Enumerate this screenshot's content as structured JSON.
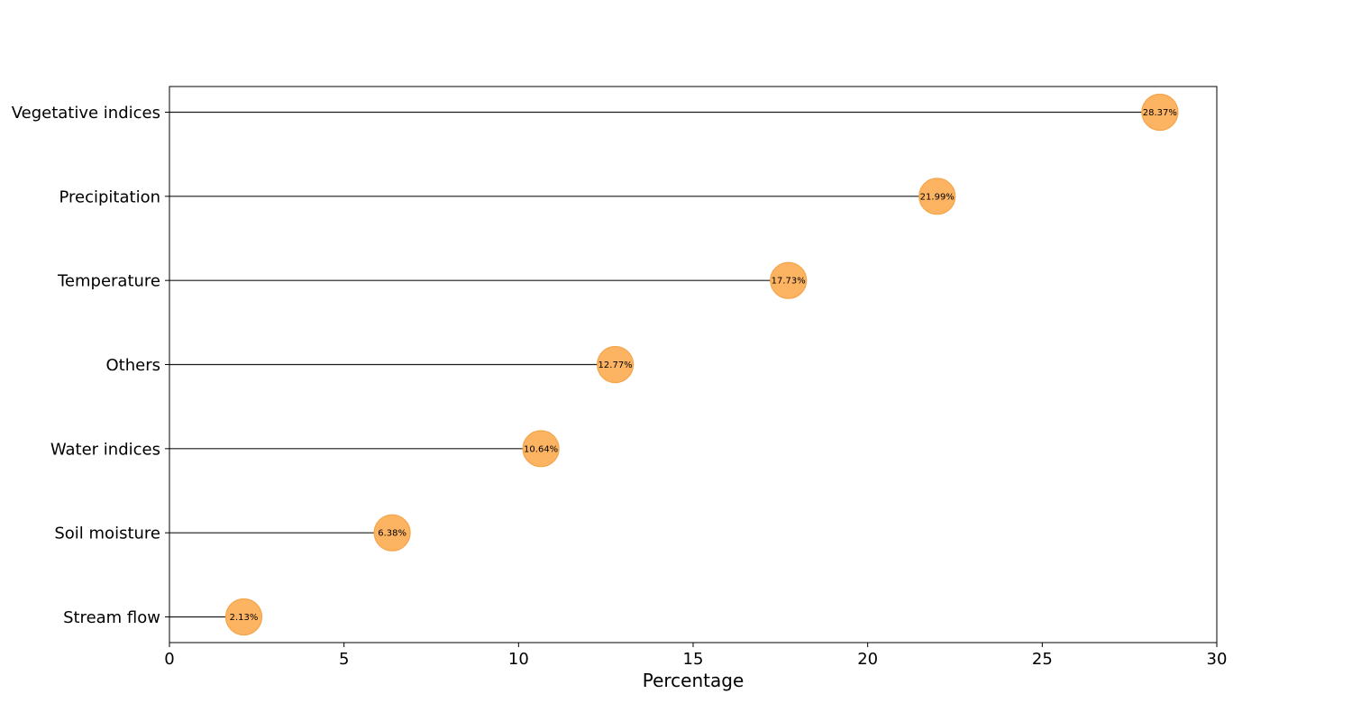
{
  "chart_data": {
    "type": "lollipop",
    "title": "",
    "xlabel": "Percentage",
    "ylabel": "",
    "xlim": [
      0,
      30
    ],
    "xticks": [
      0,
      5,
      10,
      15,
      20,
      25,
      30
    ],
    "xtick_labels": [
      "0",
      "5",
      "10",
      "15",
      "20",
      "25",
      "30"
    ],
    "grid": false,
    "legend": "none",
    "categories": [
      "Vegetative indices",
      "Precipitation",
      "Temperature",
      "Others",
      "Water indices",
      "Soil moisture",
      "Stream flow"
    ],
    "values": [
      28.37,
      21.99,
      17.73,
      12.77,
      10.64,
      6.38,
      2.13
    ],
    "data_labels": [
      "28.37%",
      "21.99%",
      "17.73%",
      "12.77%",
      "10.64%",
      "6.38%",
      "2.13%"
    ],
    "colors": {
      "marker_fill": "#fdb462",
      "marker_edge": "#f5a44a",
      "stem": "#1a1a1a"
    }
  }
}
